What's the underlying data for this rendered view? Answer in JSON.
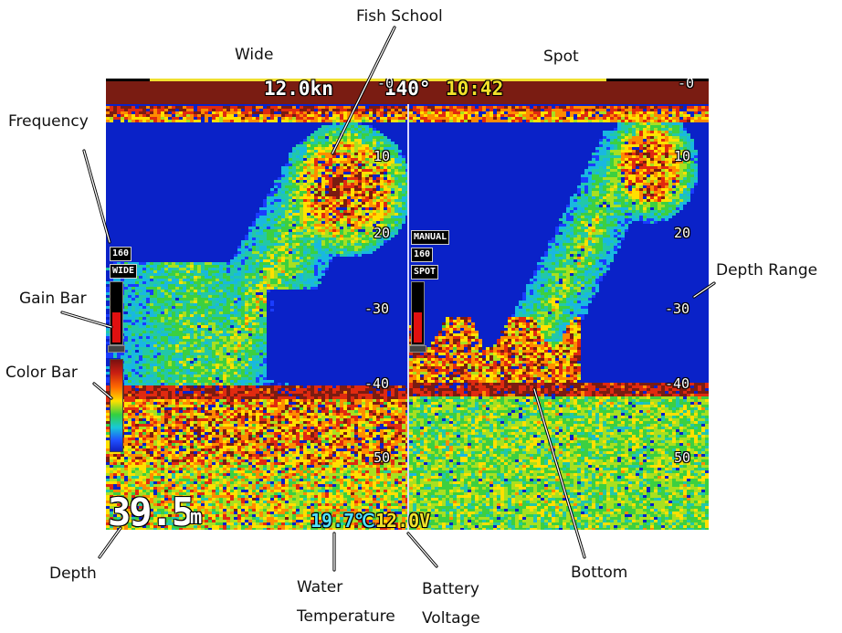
{
  "callouts": {
    "wide": "Wide",
    "spot": "Spot",
    "fish_school": "Fish School",
    "frequency": "Frequency",
    "gain_bar": "Gain Bar",
    "color_bar": "Color Bar",
    "depth_range": "Depth Range",
    "depth": "Depth",
    "water_temperature": "Water Temperature",
    "battery_voltage": "Battery Voltage",
    "bottom": "Bottom"
  },
  "status": {
    "speed": "12.0kn",
    "heading": "140°",
    "time": "10:42",
    "depth_value": "39.5",
    "depth_unit": "m",
    "water_temp": "19.7℃",
    "battery": "12.0V"
  },
  "wide_panel": {
    "frequency": "160",
    "mode": "WIDE",
    "gain_level": 0.55
  },
  "spot_panel": {
    "gain_mode": "MANUAL",
    "frequency": "160",
    "mode": "SPOT",
    "gain_level": 0.55
  },
  "depth_scale": {
    "max": 60,
    "bottom_depth": 39.5,
    "ticks": [
      "-0",
      "10",
      "20",
      "-30",
      "-40",
      "50"
    ],
    "tick_values": [
      0,
      10,
      20,
      30,
      40,
      50
    ]
  },
  "colors": {
    "water": "#0a22c8",
    "strong_echo": "#7a1c12",
    "status_white": "#ffffff",
    "status_yellow": "#f2e22a",
    "status_cyan": "#4fe0ff"
  }
}
